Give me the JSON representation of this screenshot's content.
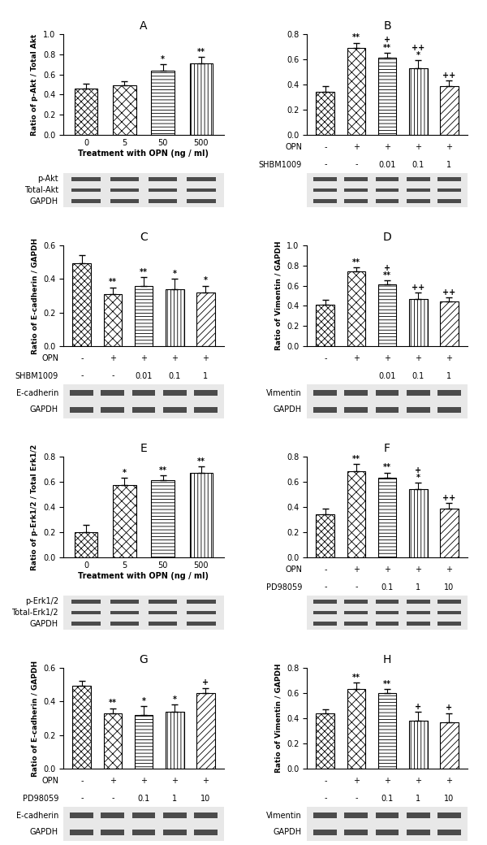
{
  "chart_data": [
    {
      "type": "bar",
      "title": "A",
      "y_label": "Ratio of p-Akt / Total Akt",
      "x_label": "Treatment with OPN (ng / ml)",
      "categories": [
        "0",
        "5",
        "50",
        "500"
      ],
      "values": [
        0.46,
        0.49,
        0.64,
        0.71
      ],
      "errors": [
        0.05,
        0.04,
        0.06,
        0.06
      ],
      "significance": [
        [],
        [],
        [
          "*"
        ],
        [
          "**"
        ]
      ],
      "color": "#ffffff",
      "ylim": [
        0,
        1.0
      ],
      "yticks": [
        {
          "value": 0,
          "label": "0.0"
        },
        0.2,
        0.4,
        0.6,
        0.8,
        {
          "value": 1.0,
          "label": "1.0"
        }
      ],
      "blots": [
        "p-Akt",
        "Total-Akt",
        "GAPDH"
      ]
    },
    {
      "type": "bar",
      "title": "B",
      "values": [
        0.34,
        0.69,
        0.61,
        0.53,
        0.39
      ],
      "errors": [
        0.05,
        0.04,
        0.04,
        0.06,
        0.04
      ],
      "significance": [
        [],
        [
          "**"
        ],
        [
          "+",
          "**"
        ],
        [
          "++",
          "*"
        ],
        [
          "++"
        ]
      ],
      "color": "#ffffff",
      "treatments": [
        {
          "label": "OPN",
          "values": [
            "-",
            "+",
            "+",
            "+",
            "+"
          ]
        },
        {
          "label": "SHBM1009",
          "values": [
            "-",
            "-",
            "0.01",
            "0.1",
            "1"
          ]
        }
      ],
      "ylim": [
        0,
        0.8
      ],
      "yticks": [
        {
          "value": 0,
          "label": "0.0"
        },
        0.2,
        0.4,
        0.6,
        0.8
      ],
      "blots": [
        null,
        null,
        null
      ]
    },
    {
      "type": "bar",
      "title": "C",
      "y_label": "Ratio of E-cadherin / GAPDH",
      "values": [
        0.49,
        0.31,
        0.36,
        0.34,
        0.32
      ],
      "errors": [
        0.05,
        0.04,
        0.05,
        0.06,
        0.04
      ],
      "significance": [
        [],
        [
          "**"
        ],
        [
          "**"
        ],
        [
          "*"
        ],
        [
          "*"
        ]
      ],
      "color": "#ffffff",
      "treatments": [
        {
          "label": "OPN",
          "values": [
            "-",
            "+",
            "+",
            "+",
            "+"
          ]
        },
        {
          "label": "SHBM1009",
          "values": [
            "-",
            "-",
            "0.01",
            "0.1",
            "1"
          ]
        }
      ],
      "ylim": [
        0,
        0.6
      ],
      "yticks": [
        {
          "value": 0,
          "label": "0.0"
        },
        0.2,
        0.4,
        0.6
      ],
      "blots": [
        "E-cadherin",
        "GAPDH"
      ]
    },
    {
      "type": "bar",
      "title": "D",
      "y_label": "Ratio of Vimentin / GAPDH",
      "values": [
        0.41,
        0.74,
        0.61,
        0.47,
        0.44
      ],
      "errors": [
        0.05,
        0.04,
        0.04,
        0.06,
        0.04
      ],
      "significance": [
        [],
        [
          "**"
        ],
        [
          "+",
          "**"
        ],
        [
          "++"
        ],
        [
          "++"
        ]
      ],
      "color": "#ffffff",
      "treatments": [
        {
          "label": null,
          "values": [
            "-",
            "+",
            "+",
            "+",
            "+"
          ]
        },
        {
          "label": null,
          "values": [
            null,
            null,
            "0.01",
            "0.1",
            "1"
          ]
        }
      ],
      "ylim": [
        0,
        1.0
      ],
      "yticks": [
        {
          "value": 0,
          "label": "0.0"
        },
        0.2,
        0.4,
        0.6,
        0.8,
        {
          "value": 1.0,
          "label": "1.0"
        }
      ],
      "blots": [
        "Vimentin",
        "GAPDH"
      ]
    },
    {
      "type": "bar",
      "title": "E",
      "y_label": "Ratio of p-Erk1/2 / Total Erk1/2",
      "x_label": "Treatment with OPN (ng / ml)",
      "categories": [
        "0",
        "5",
        "50",
        "500"
      ],
      "values": [
        0.2,
        0.57,
        0.61,
        0.67
      ],
      "errors": [
        0.06,
        0.06,
        0.04,
        0.05
      ],
      "significance": [
        [],
        [
          "*"
        ],
        [
          "**"
        ],
        [
          "**"
        ]
      ],
      "color": "#ffffff",
      "ylim": [
        0,
        0.8
      ],
      "yticks": [
        {
          "value": 0,
          "label": "0.0"
        },
        0.2,
        0.4,
        0.6,
        0.8
      ],
      "blots": [
        "p-Erk1/2",
        "Total-Erk1/2",
        "GAPDH"
      ]
    },
    {
      "type": "bar",
      "title": "F",
      "values": [
        0.34,
        0.68,
        0.63,
        0.54,
        0.39
      ],
      "errors": [
        0.05,
        0.06,
        0.04,
        0.05,
        0.04
      ],
      "significance": [
        [],
        [
          "**"
        ],
        [
          "**"
        ],
        [
          "+",
          "*"
        ],
        [
          "++"
        ]
      ],
      "color": "#ffffff",
      "treatments": [
        {
          "label": "OPN",
          "values": [
            "-",
            "+",
            "+",
            "+",
            "+"
          ]
        },
        {
          "label": "PD98059",
          "values": [
            "-",
            "-",
            "0.1",
            "1",
            "10"
          ]
        }
      ],
      "ylim": [
        0,
        0.8
      ],
      "yticks": [
        {
          "value": 0,
          "label": "0.0"
        },
        0.2,
        0.4,
        0.6,
        0.8
      ],
      "blots": [
        null,
        null,
        null
      ]
    },
    {
      "type": "bar",
      "title": "G",
      "y_label": "Ratio of E-cadherin / GAPDH",
      "values": [
        0.49,
        0.33,
        0.32,
        0.34,
        0.45
      ],
      "errors": [
        0.03,
        0.03,
        0.05,
        0.04,
        0.03
      ],
      "significance": [
        [],
        [
          "**"
        ],
        [
          "*"
        ],
        [
          "*"
        ],
        [
          "+"
        ]
      ],
      "color": "#ffffff",
      "treatments": [
        {
          "label": "OPN",
          "values": [
            "-",
            "+",
            "+",
            "+",
            "+"
          ]
        },
        {
          "label": "PD98059",
          "values": [
            "-",
            "-",
            "0.1",
            "1",
            "10"
          ]
        }
      ],
      "ylim": [
        0,
        0.6
      ],
      "yticks": [
        {
          "value": 0,
          "label": "0.0"
        },
        0.2,
        0.4,
        0.6
      ],
      "blots": [
        "E-cadherin",
        "GAPDH"
      ]
    },
    {
      "type": "bar",
      "title": "H",
      "y_label": "Ratio of Vimentin / GAPDH",
      "values": [
        0.44,
        0.63,
        0.6,
        0.38,
        0.37
      ],
      "errors": [
        0.03,
        0.05,
        0.03,
        0.07,
        0.07
      ],
      "significance": [
        [],
        [
          "**"
        ],
        [
          "**"
        ],
        [
          "+"
        ],
        [
          "+"
        ]
      ],
      "color": "#ffffff",
      "treatments": [
        {
          "label": null,
          "values": [
            "-",
            "+",
            "+",
            "+",
            "+"
          ]
        },
        {
          "label": null,
          "values": [
            "-",
            "-",
            "0.1",
            "1",
            "10"
          ]
        }
      ],
      "ylim": [
        0,
        0.8
      ],
      "yticks": [
        {
          "value": 0,
          "label": "0.0"
        },
        0.2,
        0.4,
        0.6,
        0.8
      ],
      "blots": [
        "Vimentin",
        "GAPDH"
      ]
    }
  ]
}
